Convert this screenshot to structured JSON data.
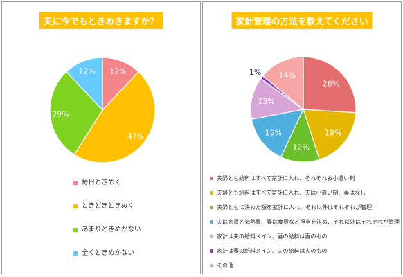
{
  "chart_data": [
    {
      "type": "pie",
      "title": "夫に今でもときめきますか？",
      "categories": [
        "毎日ときめく",
        "ときどきときめく",
        "あまりときめかない",
        "全くときめかない"
      ],
      "values": [
        12,
        47,
        29,
        12
      ],
      "labels": [
        "12%",
        "47%",
        "29%",
        "12%"
      ],
      "colors": [
        "#f4838a",
        "#ffc000",
        "#7ed321",
        "#66ccff"
      ],
      "legend_position": "bottom"
    },
    {
      "type": "pie",
      "title": "家計管理の方法を教えてください",
      "categories": [
        "夫婦とも給料はすべて家計に入れ、それぞれお小遣い制",
        "夫婦とも給料はすべて家計に入れ、夫は小遣い制、妻はなし",
        "夫婦ともに決めた額を家計に入れ、それ以外はそれぞれが管理",
        "夫は家賃と光熱費、妻は食費など担当を決め、それ以外はそれぞれが管理",
        "家計は夫の給料メイン、妻の給料は妻のもの",
        "家計は妻の給料メイン、夫の給料は夫のもの",
        "その他"
      ],
      "values": [
        26,
        19,
        12,
        15,
        13,
        1,
        14
      ],
      "labels": [
        "26%",
        "19%",
        "12%",
        "15%",
        "13%",
        "1%",
        "14%"
      ],
      "colors": [
        "#e36c6c",
        "#e5b800",
        "#6cc02a",
        "#4fb0e0",
        "#d8a6d6",
        "#8a3ab9",
        "#f7a5a5"
      ],
      "legend_position": "bottom"
    }
  ]
}
